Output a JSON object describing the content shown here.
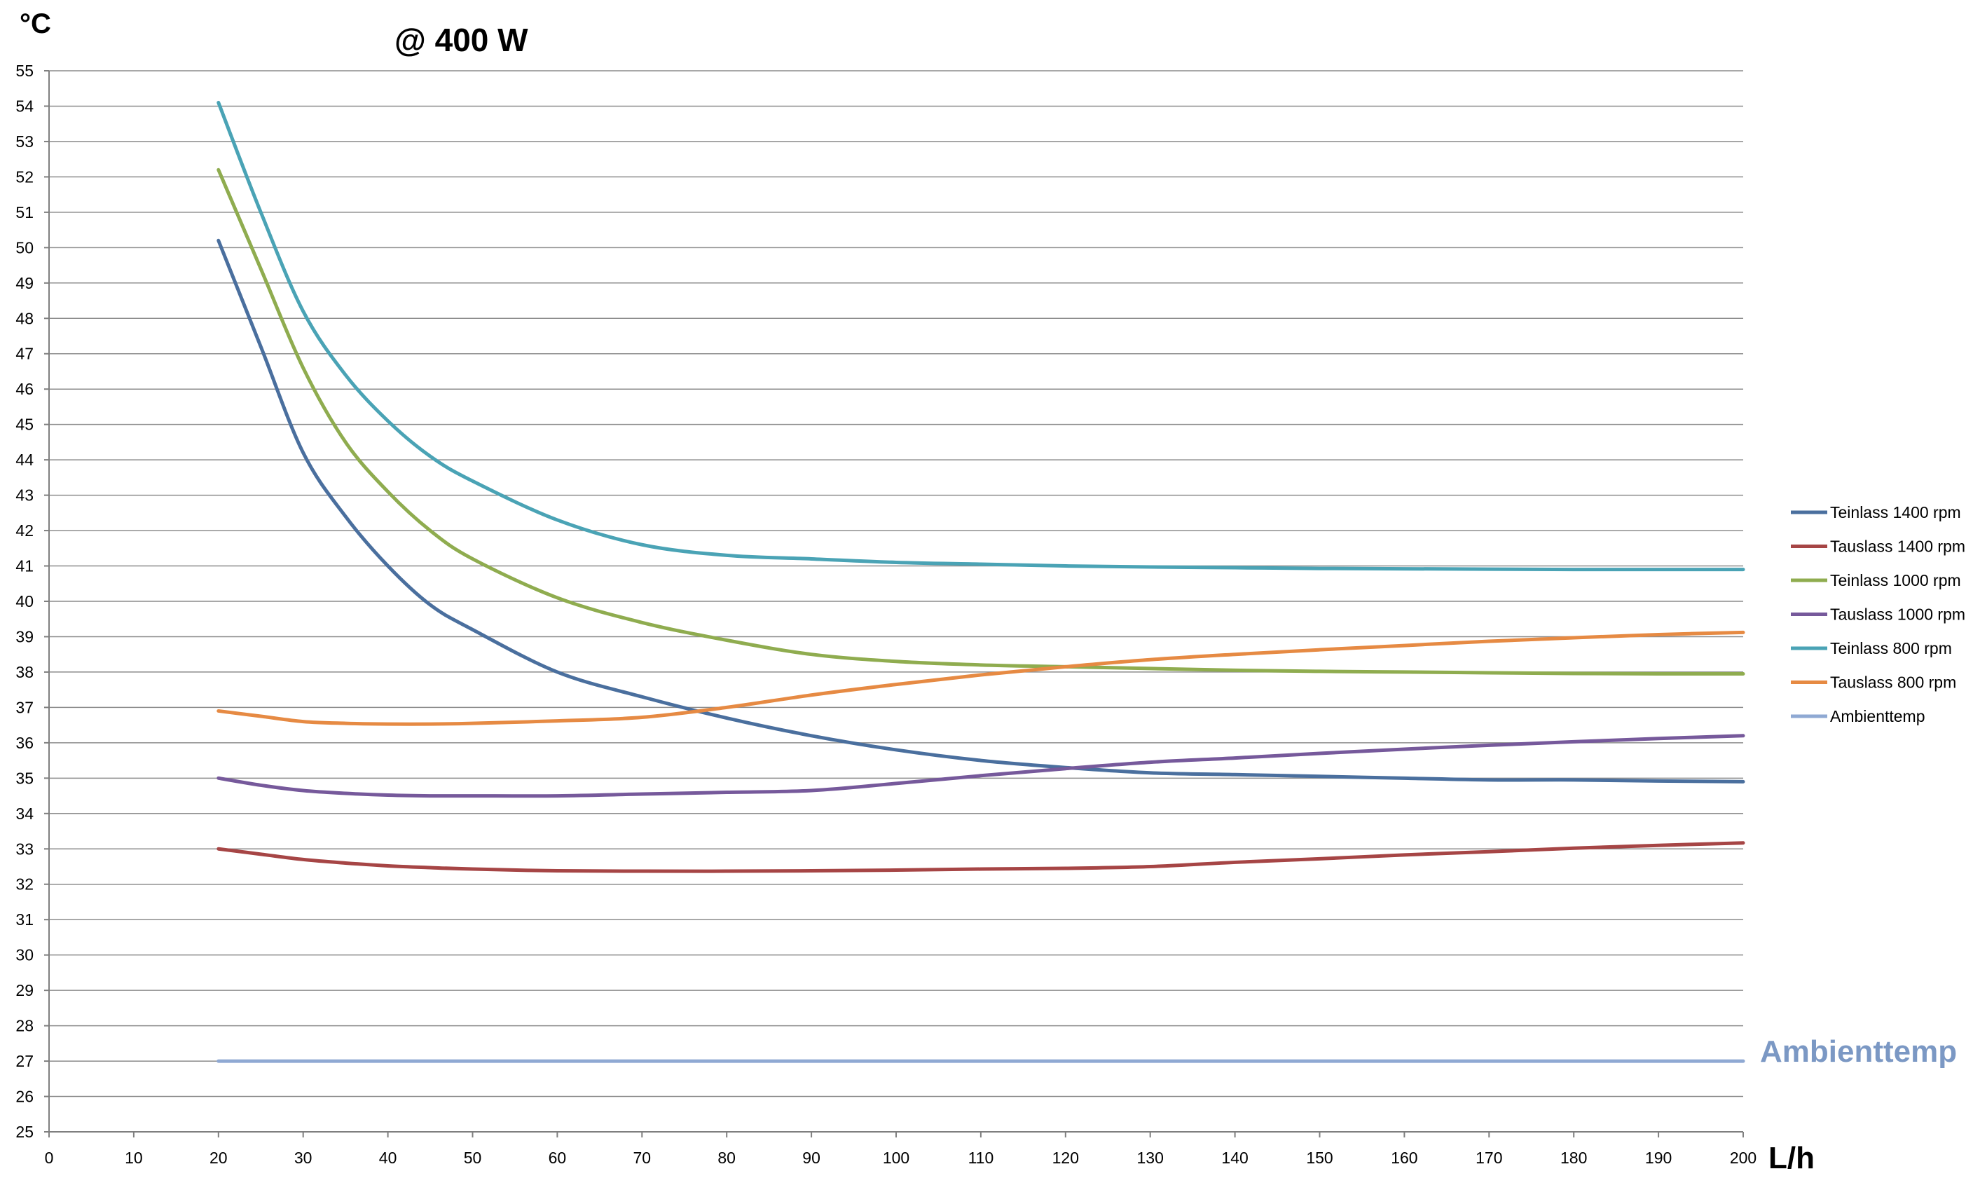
{
  "chart_data": {
    "type": "line",
    "title": "@ 400 W",
    "ylabel": "°C",
    "xlabel": "L/h",
    "xlim": [
      0,
      200
    ],
    "ylim": [
      25,
      55
    ],
    "x_ticks": [
      0,
      10,
      20,
      30,
      40,
      50,
      60,
      70,
      80,
      90,
      100,
      110,
      120,
      130,
      140,
      150,
      160,
      170,
      180,
      190,
      200
    ],
    "y_ticks": [
      25,
      26,
      27,
      28,
      29,
      30,
      31,
      32,
      33,
      34,
      35,
      36,
      37,
      38,
      39,
      40,
      41,
      42,
      43,
      44,
      45,
      46,
      47,
      48,
      49,
      50,
      51,
      52,
      53,
      54,
      55
    ],
    "grid": "horizontal",
    "legend_position": "right",
    "x": [
      20,
      25,
      30,
      35,
      40,
      45,
      50,
      60,
      70,
      80,
      90,
      100,
      110,
      120,
      130,
      140,
      150,
      160,
      170,
      180,
      190,
      200
    ],
    "series": [
      {
        "name": "Teinlass 1400 rpm",
        "color": "#4a6f9e",
        "values": [
          50.2,
          47.2,
          44.2,
          42.4,
          41.0,
          39.9,
          39.2,
          38.0,
          37.3,
          36.7,
          36.2,
          35.8,
          35.5,
          35.3,
          35.15,
          35.1,
          35.05,
          35.0,
          34.95,
          34.95,
          34.92,
          34.9
        ]
      },
      {
        "name": "Tauslass 1400 rpm",
        "color": "#a64545",
        "values": [
          33.0,
          32.85,
          32.7,
          32.6,
          32.52,
          32.47,
          32.43,
          32.38,
          32.37,
          32.37,
          32.38,
          32.4,
          32.43,
          32.45,
          32.5,
          32.62,
          32.72,
          32.83,
          32.92,
          33.02,
          33.1,
          33.17
        ]
      },
      {
        "name": "Teinlass 1000 rpm",
        "color": "#8fac4f",
        "values": [
          52.2,
          49.4,
          46.6,
          44.5,
          43.1,
          42.0,
          41.2,
          40.1,
          39.4,
          38.9,
          38.5,
          38.3,
          38.2,
          38.15,
          38.1,
          38.05,
          38.02,
          38.0,
          37.98,
          37.96,
          37.95,
          37.95
        ]
      },
      {
        "name": "Tauslass 1000 rpm",
        "color": "#76599b",
        "values": [
          35.0,
          34.8,
          34.65,
          34.57,
          34.52,
          34.5,
          34.5,
          34.5,
          34.55,
          34.6,
          34.65,
          34.85,
          35.07,
          35.27,
          35.45,
          35.57,
          35.7,
          35.82,
          35.93,
          36.03,
          36.12,
          36.2
        ]
      },
      {
        "name": "Teinlass 800 rpm",
        "color": "#4aa3b5",
        "values": [
          54.1,
          51.0,
          48.2,
          46.4,
          45.1,
          44.1,
          43.4,
          42.3,
          41.6,
          41.3,
          41.2,
          41.1,
          41.05,
          41.0,
          40.97,
          40.95,
          40.93,
          40.92,
          40.91,
          40.9,
          40.9,
          40.9
        ]
      },
      {
        "name": "Tauslass 800 rpm",
        "color": "#e68a43",
        "values": [
          36.9,
          36.75,
          36.6,
          36.55,
          36.53,
          36.53,
          36.55,
          36.62,
          36.72,
          37.0,
          37.35,
          37.65,
          37.92,
          38.15,
          38.35,
          38.5,
          38.63,
          38.75,
          38.87,
          38.97,
          39.06,
          39.12
        ]
      },
      {
        "name": "Ambienttemp",
        "color": "#8fa9d3",
        "values": [
          27,
          27,
          27,
          27,
          27,
          27,
          27,
          27,
          27,
          27,
          27,
          27,
          27,
          27,
          27,
          27,
          27,
          27,
          27,
          27,
          27,
          27
        ]
      }
    ],
    "annotations": [
      {
        "text": "Ambienttemp",
        "color": "#7b98c4"
      }
    ]
  }
}
